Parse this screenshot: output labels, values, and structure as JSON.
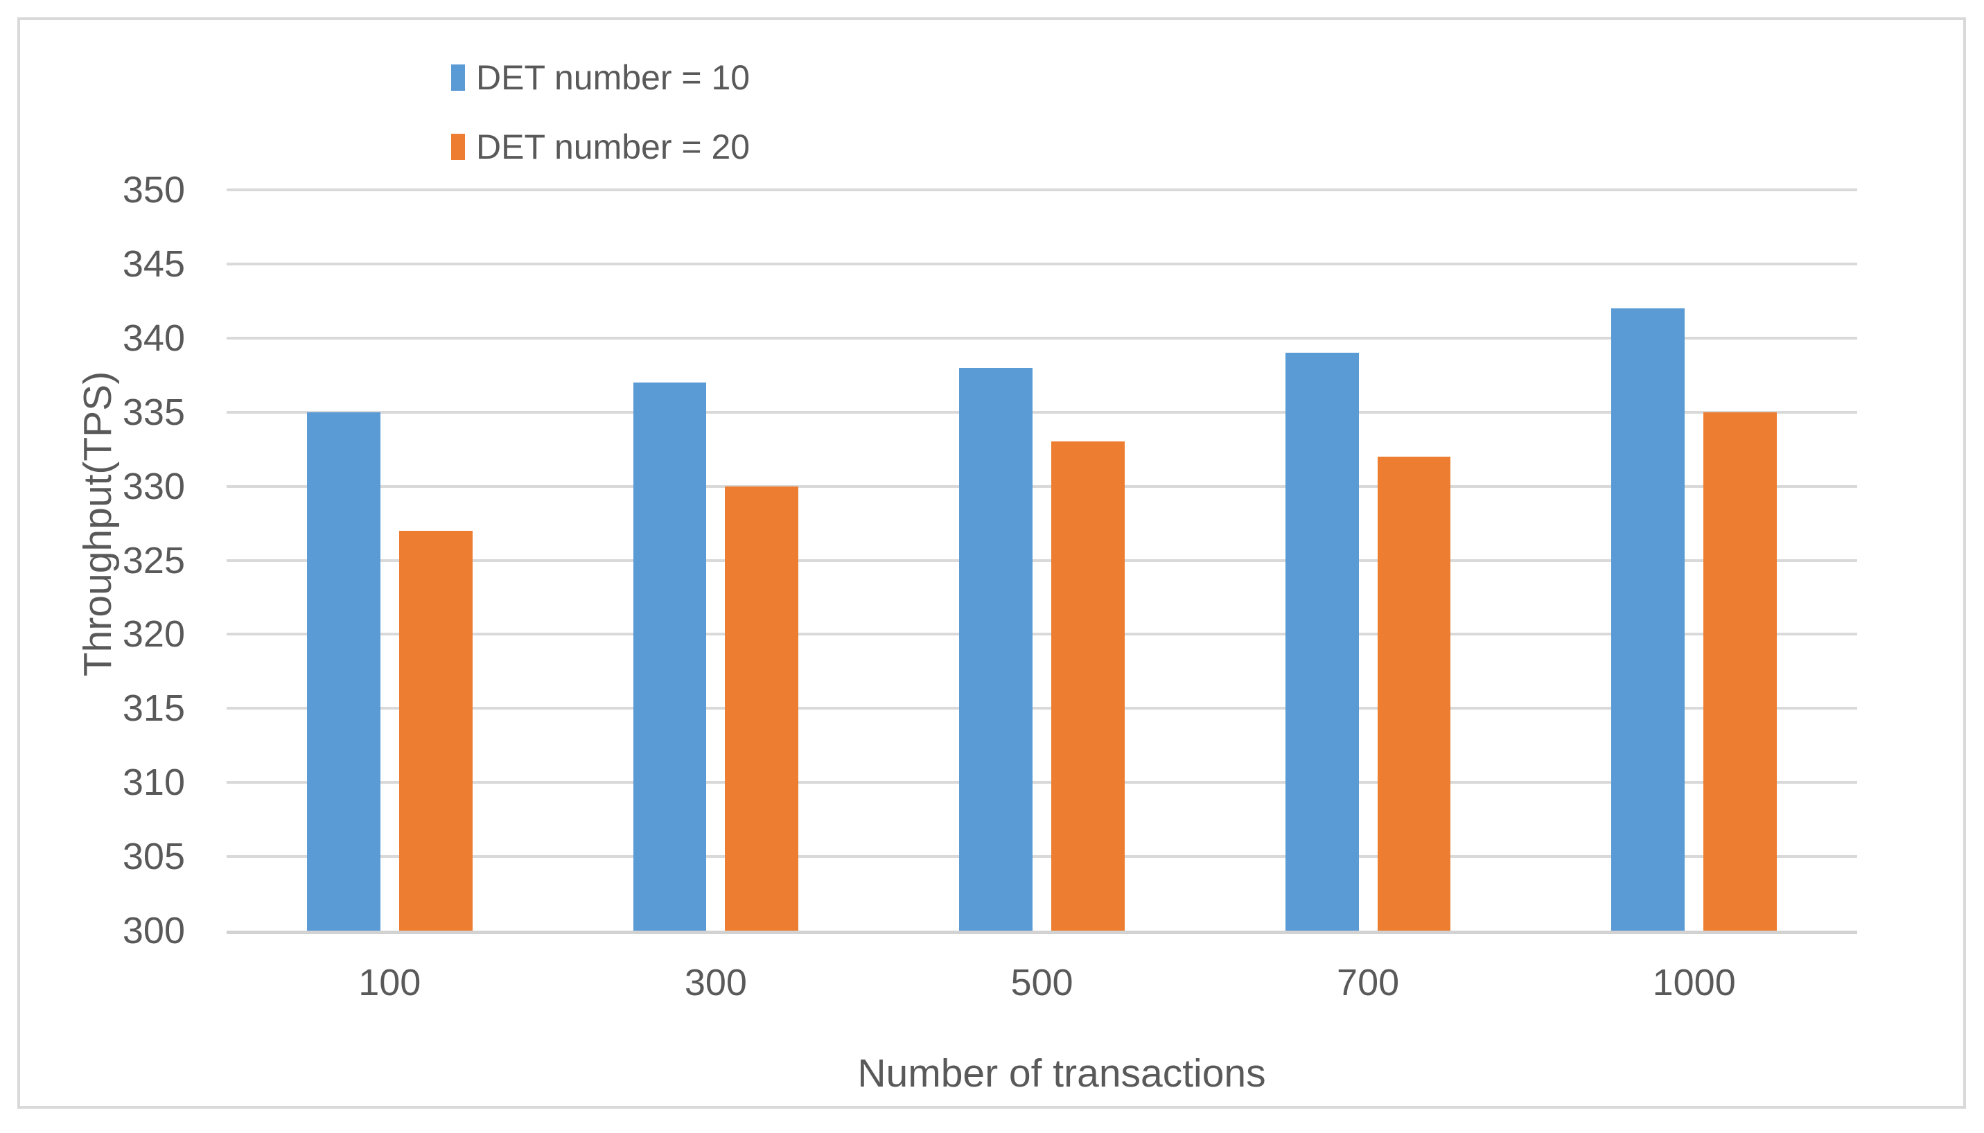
{
  "chart_data": {
    "type": "bar",
    "categories": [
      "100",
      "300",
      "500",
      "700",
      "1000"
    ],
    "series": [
      {
        "name": "DET number = 10",
        "color": "#5B9BD5",
        "values": [
          335,
          337,
          338,
          339,
          342
        ]
      },
      {
        "name": "DET number = 20",
        "color": "#ED7D31",
        "values": [
          327,
          330,
          333,
          332,
          335
        ]
      }
    ],
    "title": "",
    "xlabel": "Number of transactions",
    "ylabel": "Throughput(TPS)",
    "ylim": [
      300,
      350
    ],
    "ytick_step": 5,
    "yticks": [
      300,
      305,
      310,
      315,
      320,
      325,
      330,
      335,
      340,
      345,
      350
    ],
    "grid": true,
    "legend_position": "top"
  },
  "legend": {
    "items": [
      {
        "label": "DET number = 10",
        "color": "#5B9BD5"
      },
      {
        "label": "DET number = 20",
        "color": "#ED7D31"
      }
    ]
  },
  "colors": {
    "series_blue": "#5B9BD5",
    "series_orange": "#ED7D31",
    "gridline": "#D9D9D9",
    "axis_line": "#D2D2D2",
    "frame": "#D9D9D9",
    "text": "#595959",
    "background": "#FFFFFF"
  }
}
